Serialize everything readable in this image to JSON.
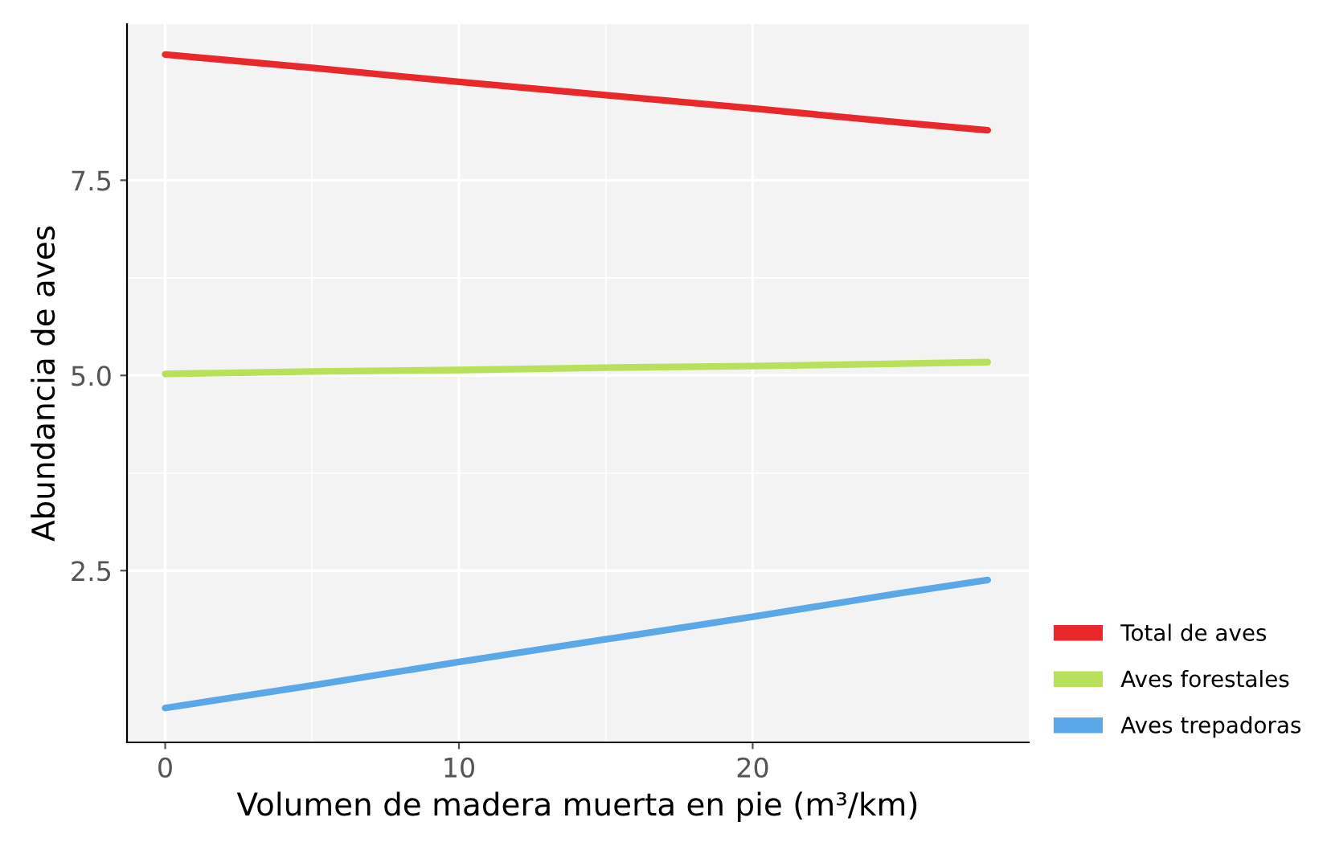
{
  "chart_data": {
    "type": "line",
    "xlabel": "Volumen de madera muerta en pie (m³/km)",
    "ylabel": "Abundancia de aves",
    "x": [
      0,
      5,
      10,
      15,
      20,
      25,
      28
    ],
    "series": [
      {
        "name": "Total de aves",
        "color": "#e8282b",
        "values": [
          9.11,
          8.94,
          8.76,
          8.59,
          8.42,
          8.24,
          8.14
        ]
      },
      {
        "name": "Aves forestales",
        "color": "#b8e05a",
        "values": [
          5.02,
          5.05,
          5.07,
          5.1,
          5.12,
          5.15,
          5.17
        ]
      },
      {
        "name": "Aves trepadoras",
        "color": "#5aa8e8",
        "values": [
          0.74,
          1.03,
          1.33,
          1.62,
          1.91,
          2.21,
          2.38
        ]
      }
    ],
    "xlim": [
      -1.3,
      29.4
    ],
    "ylim": [
      0.3,
      9.5
    ],
    "xticks": [
      0,
      10,
      20
    ],
    "yticks": [
      2.5,
      {
        "value": 5.0,
        "label": "5.0"
      },
      7.5
    ],
    "grid": true,
    "legend": "bottom right",
    "line_style": "solid",
    "marker": "none"
  }
}
